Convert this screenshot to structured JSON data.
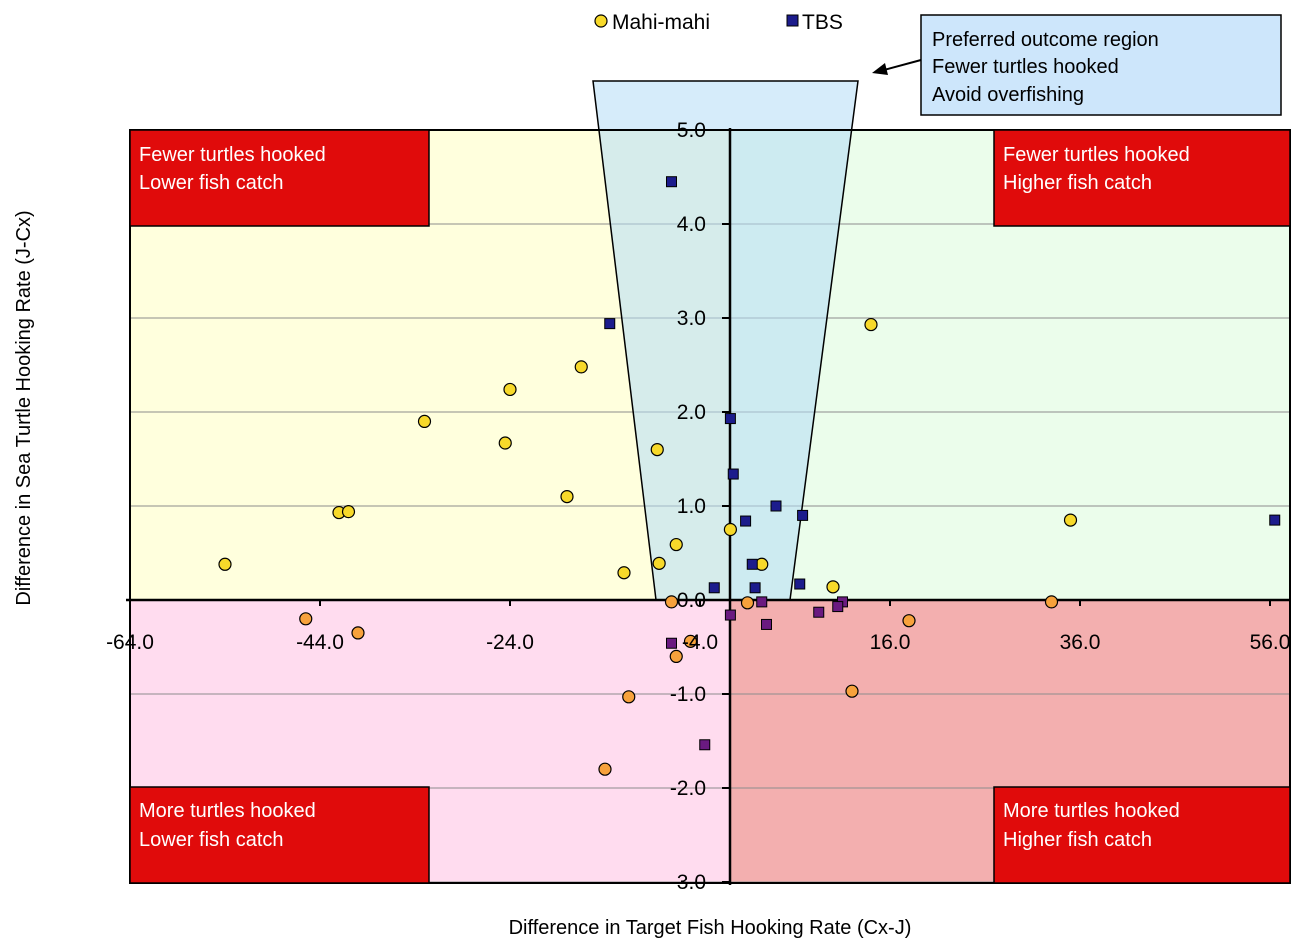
{
  "chart_data": {
    "type": "scatter",
    "xlabel": "Difference in Target Fish Hooking Rate (Cx-J)",
    "ylabel": "Difference in Sea Turtle Hooking Rate (J-Cx)",
    "xlim": [
      -64,
      60
    ],
    "ylim": [
      -3,
      5
    ],
    "x_ticks": [
      "-64.0",
      "-44.0",
      "-24.0",
      "-4.0",
      "16.0",
      "36.0",
      "56.0"
    ],
    "y_ticks": [
      "5.0",
      "4.0",
      "3.0",
      "2.0",
      "1.0",
      "0.0",
      "-1.0",
      "-2.0",
      "-3.0"
    ],
    "legend": {
      "position": "top-center"
    },
    "quadrant_labels": [
      [
        "Fewer turtles hooked",
        "Lower fish catch"
      ],
      [
        "Fewer turtles hooked",
        "Higher fish catch"
      ],
      [
        "More turtles hooked",
        "Lower fish catch"
      ],
      [
        "More turtles hooked",
        "Higher fish catch"
      ]
    ],
    "callout": [
      "Preferred outcome region",
      "Fewer turtles hooked",
      "Avoid overfishing"
    ],
    "colors": {
      "mahi_fill": "#f7d92a",
      "mahi_neg_fill": "#f7a23c",
      "tbs_fill": "#1c1c8c",
      "tbs_neg_fill": "#6a1a80",
      "q_upper_left": "#ffffdd",
      "q_upper_right": "#ebfdeb",
      "q_lower_left": "#ffdcef",
      "q_lower_right": "#f3afaf",
      "label_box": "#e00b0b",
      "callout_fill": "#cde6fb",
      "preferred_region": "#b4dcf5"
    },
    "series": [
      {
        "name": "Mahi-mahi",
        "marker": "circle",
        "points": [
          [
            -54.0,
            0.38
          ],
          [
            -42.0,
            0.93
          ],
          [
            -41.0,
            0.94
          ],
          [
            -33.0,
            1.9
          ],
          [
            -24.5,
            1.67
          ],
          [
            -24.0,
            2.24
          ],
          [
            -18.0,
            1.1
          ],
          [
            -16.5,
            2.48
          ],
          [
            -12.0,
            0.29
          ],
          [
            -8.5,
            1.6
          ],
          [
            -8.3,
            0.39
          ],
          [
            -6.5,
            0.59
          ],
          [
            -0.8,
            0.75
          ],
          [
            2.5,
            0.38
          ],
          [
            10.0,
            0.14
          ],
          [
            14.0,
            2.93
          ],
          [
            35.0,
            0.85
          ],
          [
            -45.5,
            -0.2
          ],
          [
            -40.0,
            -0.35
          ],
          [
            -11.5,
            -1.03
          ],
          [
            -14.0,
            -1.8
          ],
          [
            -7.0,
            -0.02
          ],
          [
            -6.5,
            -0.6
          ],
          [
            -5.0,
            -0.44
          ],
          [
            1.0,
            -0.03
          ],
          [
            18.0,
            -0.22
          ],
          [
            12.0,
            -0.97
          ],
          [
            33.0,
            -0.02
          ]
        ]
      },
      {
        "name": "TBS",
        "marker": "square",
        "points": [
          [
            -7.0,
            4.45
          ],
          [
            -13.5,
            2.94
          ],
          [
            -0.8,
            1.93
          ],
          [
            -0.5,
            1.34
          ],
          [
            0.8,
            0.84
          ],
          [
            1.5,
            0.38
          ],
          [
            4.0,
            1.0
          ],
          [
            6.8,
            0.9
          ],
          [
            -2.5,
            0.13
          ],
          [
            1.8,
            0.13
          ],
          [
            6.5,
            0.17
          ],
          [
            56.5,
            0.85
          ],
          [
            2.5,
            -0.02
          ],
          [
            11.0,
            -0.02
          ],
          [
            10.5,
            -0.07
          ],
          [
            8.5,
            -0.13
          ],
          [
            -7.0,
            -0.46
          ],
          [
            -0.8,
            -0.16
          ],
          [
            3.0,
            -0.26
          ],
          [
            -3.5,
            -1.54
          ]
        ]
      }
    ]
  }
}
